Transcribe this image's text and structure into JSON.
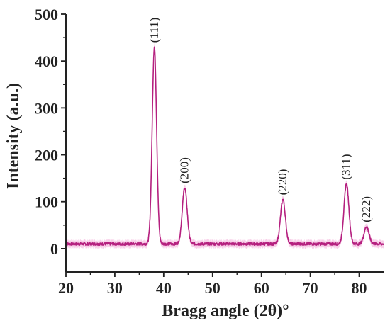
{
  "chart_data": {
    "type": "line",
    "title": "",
    "xlabel": "Bragg angle (2θ)°",
    "ylabel": "Intensity (a.u.)",
    "xlim": [
      20,
      85
    ],
    "ylim": [
      -50,
      500
    ],
    "xticks": [
      20,
      30,
      40,
      50,
      60,
      70,
      80
    ],
    "yticks": [
      0,
      100,
      200,
      300,
      400,
      500
    ],
    "grid": false,
    "legend": "none",
    "color": "#b5207f",
    "band_color": "#f2a6d6",
    "baseline_intensity": 10,
    "peaks": [
      {
        "label": "(111)",
        "two_theta": 38.1,
        "intensity": 430
      },
      {
        "label": "(200)",
        "two_theta": 44.3,
        "intensity": 130
      },
      {
        "label": "(220)",
        "two_theta": 64.4,
        "intensity": 105
      },
      {
        "label": "(311)",
        "two_theta": 77.4,
        "intensity": 138
      },
      {
        "label": "(222)",
        "two_theta": 81.5,
        "intensity": 47
      }
    ]
  }
}
